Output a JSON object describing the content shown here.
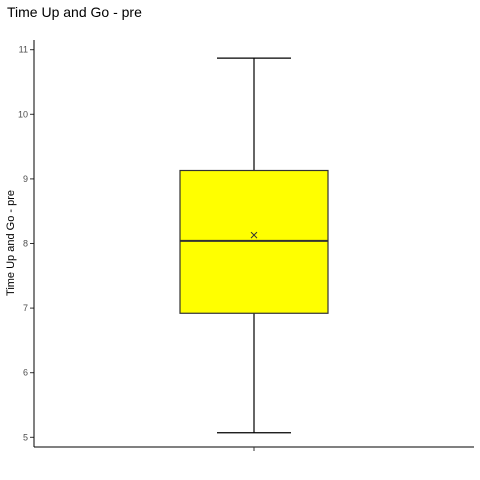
{
  "chart_data": {
    "type": "box",
    "title": "Time Up and Go - pre",
    "xlabel": "",
    "ylabel": "Time Up and Go - pre",
    "ylim": [
      4.85,
      11.15
    ],
    "yticks": [
      5,
      6,
      7,
      8,
      9,
      10,
      11
    ],
    "grid": false,
    "box": {
      "min": 5.07,
      "q1": 6.92,
      "median": 8.04,
      "q3": 9.13,
      "max": 10.87,
      "mean": 8.13
    },
    "colors": {
      "box_fill": "#ffff00",
      "box_stroke": "#333333",
      "whisker": "#000000",
      "axis": "#000000",
      "mean_marker": "#333333"
    }
  }
}
